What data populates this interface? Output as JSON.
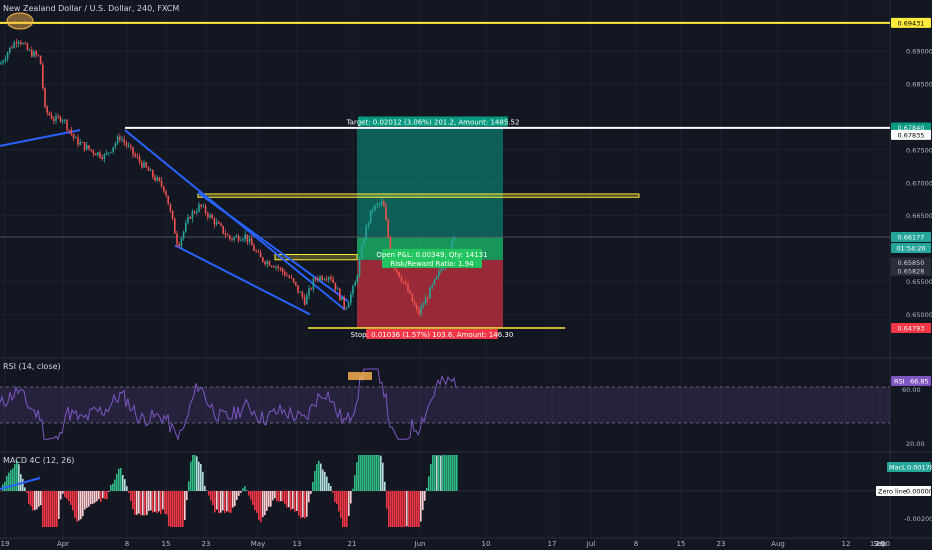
{
  "header": {
    "title": "New Zealand Dollar / U.S. Dollar, 240, FXCM"
  },
  "rsi": {
    "label": "RSI (14, close)",
    "badge_value": "66.85",
    "levels": [
      "60.00",
      "20.00"
    ]
  },
  "macd": {
    "label": "MACD 4C (12, 26)",
    "badge": "MacL",
    "badge_value": "0.00178",
    "zero_label": "Zero line",
    "zero_value": "0.00000",
    "neg_label": "-0.00200"
  },
  "position": {
    "target_text": "Target: 0.02012 (3.06%) 201.2, Amount: 1485.52",
    "open_text": "Open P&L: 0.00349, Qty: 14131",
    "rr_text": "Risk/Reward Ratio: 1.94",
    "stop_text": "Stop: 0.01036 (1.57%) 103.6, Amount: 146.30"
  },
  "price_badges": {
    "top": "0.69431",
    "tp": "0.67840",
    "line1": "0.67835",
    "current": "0.66177",
    "countdown": "01:54:26",
    "entry": "0.65850",
    "entry2": "0.65828",
    "stop": "0.64793"
  },
  "colors": {
    "background": "#131722",
    "up": "#26a69a",
    "down": "#ef5350",
    "profit": "#089981",
    "loss": "#f23645",
    "trend": "#2962ff",
    "level": "#ffeb3b",
    "rsi": "#7e57c2"
  },
  "chart_data": {
    "type": "candlestick",
    "symbol": "NZDUSD",
    "timeframe": "240",
    "ylim": [
      0.6455,
      0.6955
    ],
    "y_ticks": [
      "0.69000",
      "0.68500",
      "0.67500",
      "0.67000",
      "0.66500",
      "0.65500",
      "0.65000"
    ],
    "x_ticks": [
      "19",
      "Apr",
      "8",
      "15",
      "23",
      "May",
      "13",
      "21",
      "Jun",
      "10",
      "17",
      "Jul",
      "8",
      "15",
      "23",
      "Aug",
      "12",
      "20",
      "Sep",
      "16",
      "12:00"
    ],
    "close_path": [
      [
        0,
        0.688
      ],
      [
        8,
        0.69
      ],
      [
        18,
        0.692
      ],
      [
        28,
        0.69
      ],
      [
        40,
        0.689
      ],
      [
        45,
        0.681
      ],
      [
        55,
        0.6795
      ],
      [
        62,
        0.68
      ],
      [
        75,
        0.6765
      ],
      [
        90,
        0.675
      ],
      [
        105,
        0.674
      ],
      [
        120,
        0.677
      ],
      [
        135,
        0.674
      ],
      [
        150,
        0.6715
      ],
      [
        165,
        0.669
      ],
      [
        178,
        0.6605
      ],
      [
        190,
        0.665
      ],
      [
        200,
        0.6665
      ],
      [
        215,
        0.664
      ],
      [
        230,
        0.6615
      ],
      [
        245,
        0.662
      ],
      [
        260,
        0.6585
      ],
      [
        275,
        0.6575
      ],
      [
        290,
        0.6555
      ],
      [
        305,
        0.652
      ],
      [
        315,
        0.6555
      ],
      [
        330,
        0.656
      ],
      [
        345,
        0.651
      ],
      [
        355,
        0.6545
      ],
      [
        365,
        0.6625
      ],
      [
        372,
        0.666
      ],
      [
        383,
        0.667
      ],
      [
        392,
        0.658
      ],
      [
        405,
        0.6545
      ],
      [
        418,
        0.65
      ],
      [
        430,
        0.6535
      ],
      [
        440,
        0.6565
      ],
      [
        456,
        0.662
      ]
    ],
    "series": [
      {
        "name": "RSI",
        "range": [
          0,
          100
        ]
      },
      {
        "name": "MACD 4C"
      }
    ]
  }
}
